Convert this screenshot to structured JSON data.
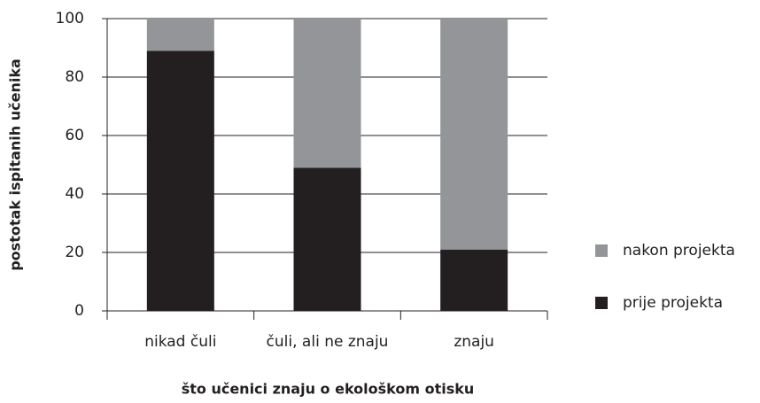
{
  "chart_data": {
    "type": "stacked_bar",
    "xlabel": "što učenici znaju o ekološkom otisku",
    "ylabel": "postotak ispitanih učenika",
    "categories": [
      "nikad čuli",
      "čuli, ali ne znaju",
      "znaju"
    ],
    "series": [
      {
        "name": "prije projekta",
        "color": "#231f20",
        "values": [
          89,
          49,
          21
        ]
      },
      {
        "name": "nakon projekta",
        "color": "#939598",
        "values": [
          11,
          51,
          79
        ]
      }
    ],
    "ylim": [
      0,
      100
    ],
    "yticks": [
      0,
      20,
      40,
      60,
      80,
      100
    ],
    "grid": true,
    "legend": "right"
  }
}
